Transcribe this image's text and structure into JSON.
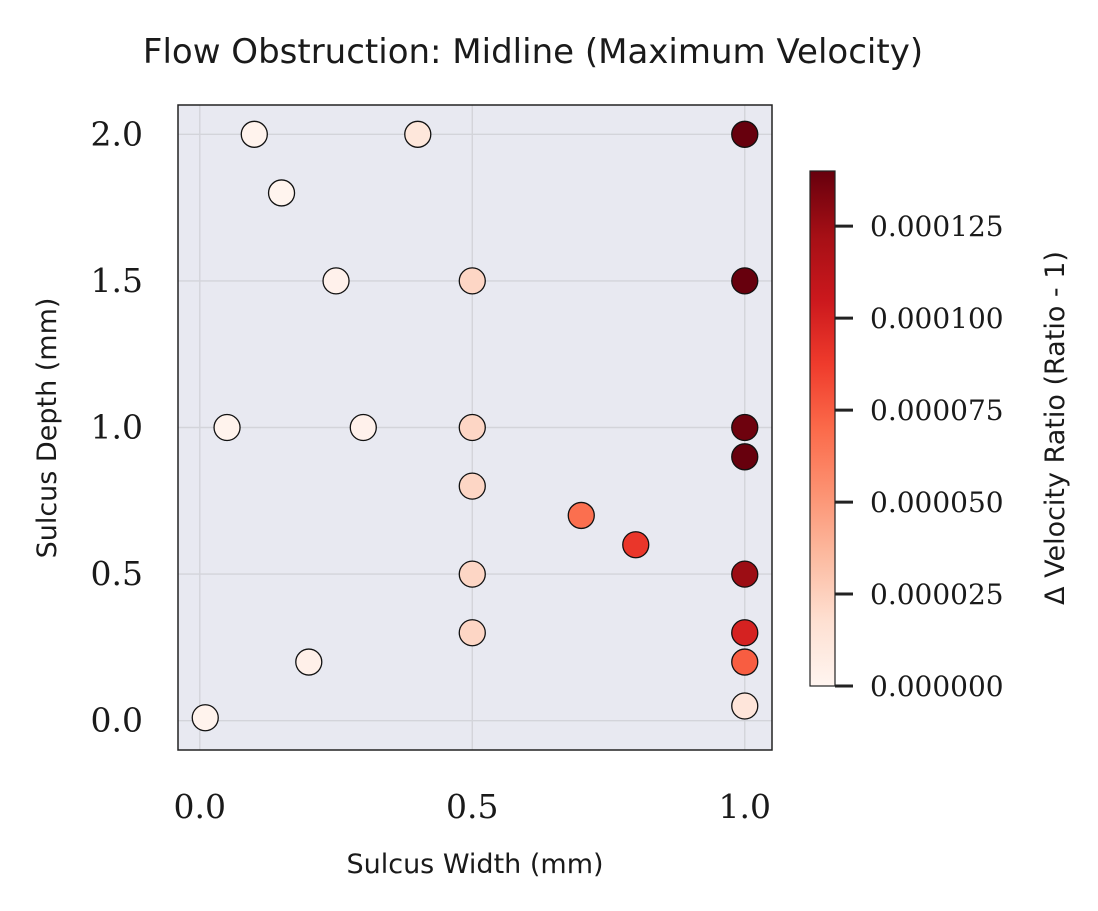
{
  "chart_data": {
    "type": "scatter",
    "title": "Flow Obstruction: Midline (Maximum Velocity)",
    "xlabel": "Sulcus Width (mm)",
    "ylabel": "Sulcus Depth (mm)",
    "xlim": [
      -0.04,
      1.05
    ],
    "ylim": [
      -0.1,
      2.1
    ],
    "x_ticks": [
      "0.0",
      "0.5",
      "1.0"
    ],
    "x_tick_values": [
      0.0,
      0.5,
      1.0
    ],
    "y_ticks": [
      "0.0",
      "0.5",
      "1.0",
      "1.5",
      "2.0"
    ],
    "y_tick_values": [
      0.0,
      0.5,
      1.0,
      1.5,
      2.0
    ],
    "grid": true,
    "background_color": "#e8e9f1",
    "colormap": "Reds",
    "colorbar": {
      "label": "Δ Velocity Ratio (Ratio - 1)",
      "range": [
        0.0,
        0.00014
      ],
      "ticks": [
        "0.000000",
        "0.000025",
        "0.000050",
        "0.000075",
        "0.000100",
        "0.000125"
      ],
      "tick_values": [
        0.0,
        2.5e-05,
        5e-05,
        7.5e-05,
        0.0001,
        0.000125
      ]
    },
    "points": [
      {
        "x": 0.1,
        "y": 2.0,
        "value": 2e-06
      },
      {
        "x": 0.4,
        "y": 2.0,
        "value": 1.2e-05
      },
      {
        "x": 1.0,
        "y": 2.0,
        "value": 0.00014
      },
      {
        "x": 0.15,
        "y": 1.8,
        "value": 1e-06
      },
      {
        "x": 0.25,
        "y": 1.5,
        "value": 3e-06
      },
      {
        "x": 0.5,
        "y": 1.5,
        "value": 2.2e-05
      },
      {
        "x": 1.0,
        "y": 1.5,
        "value": 0.00014
      },
      {
        "x": 0.05,
        "y": 1.0,
        "value": 2e-06
      },
      {
        "x": 0.3,
        "y": 1.0,
        "value": 3e-06
      },
      {
        "x": 0.5,
        "y": 1.0,
        "value": 2.2e-05
      },
      {
        "x": 1.0,
        "y": 1.0,
        "value": 0.000138
      },
      {
        "x": 1.0,
        "y": 0.9,
        "value": 0.00014
      },
      {
        "x": 0.5,
        "y": 0.8,
        "value": 2.2e-05
      },
      {
        "x": 0.7,
        "y": 0.7,
        "value": 6.8e-05
      },
      {
        "x": 0.8,
        "y": 0.6,
        "value": 9e-05
      },
      {
        "x": 0.5,
        "y": 0.5,
        "value": 2.2e-05
      },
      {
        "x": 1.0,
        "y": 0.5,
        "value": 0.000125
      },
      {
        "x": 0.5,
        "y": 0.3,
        "value": 2.2e-05
      },
      {
        "x": 1.0,
        "y": 0.3,
        "value": 0.0001
      },
      {
        "x": 0.2,
        "y": 0.2,
        "value": 4e-06
      },
      {
        "x": 1.0,
        "y": 0.2,
        "value": 7.5e-05
      },
      {
        "x": 0.01,
        "y": 0.01,
        "value": 2e-06
      },
      {
        "x": 1.0,
        "y": 0.05,
        "value": 1.3e-05
      }
    ]
  }
}
